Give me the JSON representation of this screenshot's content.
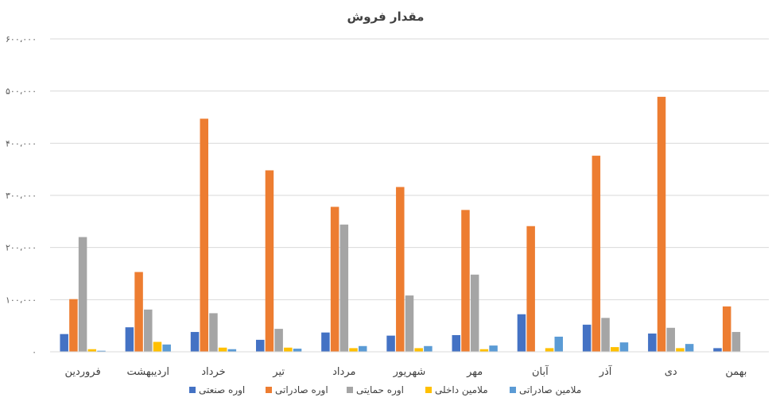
{
  "chart_data": {
    "type": "bar",
    "title": "مقدار فروش",
    "categories": [
      "فروردین",
      "اردیبهشت",
      "خرداد",
      "تیر",
      "مرداد",
      "شهریور",
      "مهر",
      "آبان",
      "آذر",
      "دی",
      "بهمن"
    ],
    "series": [
      {
        "name": "اوره صنعتی",
        "color": "#4472C4",
        "values": [
          34000,
          47000,
          38000,
          23000,
          37000,
          31000,
          32000,
          72000,
          52000,
          35000,
          7000
        ]
      },
      {
        "name": "اوره صادراتی",
        "color": "#ED7D31",
        "values": [
          101000,
          153000,
          447000,
          348000,
          278000,
          316000,
          272000,
          241000,
          376000,
          489000,
          87000
        ]
      },
      {
        "name": "اوره حمایتی",
        "color": "#A5A5A5",
        "values": [
          220000,
          81000,
          74000,
          44000,
          244000,
          108000,
          148000,
          0,
          65000,
          46000,
          38000
        ]
      },
      {
        "name": "ملامین داخلی",
        "color": "#FFC000",
        "values": [
          5000,
          19000,
          8000,
          8000,
          7000,
          7000,
          5000,
          7000,
          9000,
          7000,
          0
        ]
      },
      {
        "name": "ملامین صادراتی",
        "color": "#5B9BD5",
        "values": [
          2000,
          14000,
          5000,
          6000,
          11000,
          11000,
          12000,
          29000,
          18000,
          15000,
          0
        ]
      }
    ],
    "ylim": [
      0,
      600000
    ],
    "yticks": [
      "۰",
      "۱۰۰،۰۰۰",
      "۲۰۰،۰۰۰",
      "۳۰۰،۰۰۰",
      "۴۰۰،۰۰۰",
      "۵۰۰،۰۰۰",
      "۶۰۰،۰۰۰"
    ],
    "gridlines": true,
    "legend_position": "bottom"
  }
}
